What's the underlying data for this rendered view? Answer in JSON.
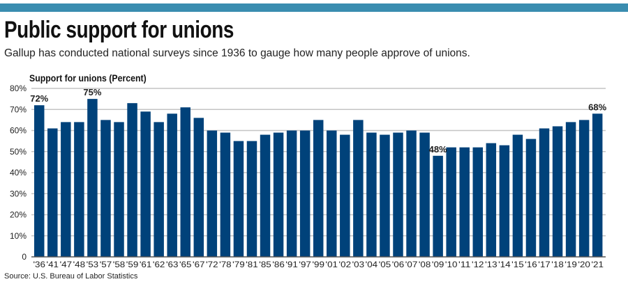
{
  "header": {
    "title": "Public support for unions",
    "subtitle": "Gallup has conducted national surveys since 1936 to gauge how many people approve of unions."
  },
  "source": "Source: U.S. Bureau of Labor Statistics",
  "colors": {
    "bar": "#00427a",
    "stripe": "#3a8db0",
    "grid": "#c4c4c4"
  },
  "chart_data": {
    "type": "bar",
    "title": "Support for unions (Percent)",
    "xlabel": "",
    "ylabel": "",
    "ylim": [
      0,
      80
    ],
    "yticks": [
      "0",
      "10%",
      "20%",
      "30%",
      "40%",
      "50%",
      "60%",
      "70%",
      "80%"
    ],
    "categories": [
      "'36",
      "'41",
      "'47",
      "'48",
      "'53",
      "'57",
      "'58",
      "'59",
      "'61",
      "'62",
      "'63",
      "'65",
      "'67",
      "'72",
      "'78",
      "'79",
      "'81",
      "'85",
      "'86",
      "'91",
      "'97",
      "'99",
      "'01",
      "'02",
      "'03",
      "'04",
      "'05",
      "'06",
      "'07",
      "'08",
      "'09",
      "'10",
      "'11",
      "'12",
      "'13",
      "'14",
      "'15",
      "'16",
      "'17",
      "'18",
      "'19",
      "'20",
      "'21"
    ],
    "values": [
      72,
      61,
      64,
      64,
      75,
      65,
      64,
      73,
      69,
      64,
      68,
      71,
      66,
      60,
      59,
      55,
      55,
      58,
      59,
      60,
      60,
      65,
      60,
      58,
      65,
      59,
      58,
      59,
      60,
      59,
      48,
      52,
      52,
      52,
      54,
      53,
      58,
      56,
      61,
      62,
      64,
      65,
      68
    ],
    "annotations": [
      {
        "index": 0,
        "label": "72%"
      },
      {
        "index": 4,
        "label": "75%"
      },
      {
        "index": 30,
        "label": "48%"
      },
      {
        "index": 42,
        "label": "68%"
      }
    ],
    "grid": true
  }
}
